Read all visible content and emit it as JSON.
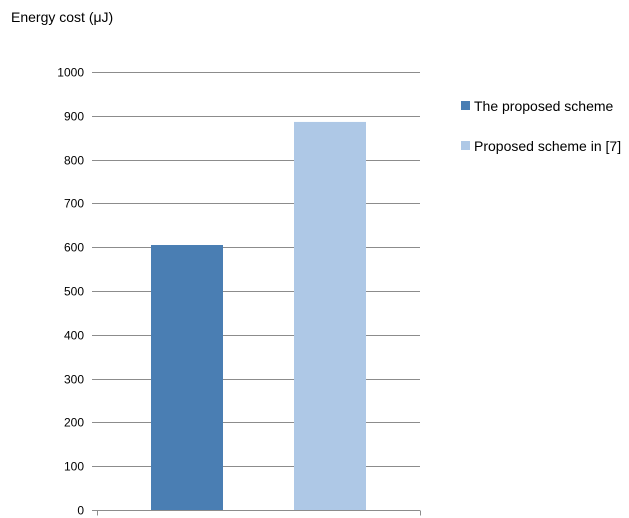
{
  "chart_data": {
    "type": "bar",
    "title": "",
    "ylabel": "Energy cost (μJ)",
    "xlabel": "",
    "categories": [
      ""
    ],
    "series": [
      {
        "name": "The proposed scheme",
        "values": [
          605
        ],
        "color": "#4a7eb3"
      },
      {
        "name": "Proposed scheme in [7]",
        "values": [
          886
        ],
        "color": "#aec8e6"
      }
    ],
    "ylim": [
      0,
      1000
    ],
    "yticks": [
      "0",
      "100",
      "200",
      "300",
      "400",
      "500",
      "600",
      "700",
      "800",
      "900",
      "1000"
    ],
    "grid": true,
    "legend_position": "right",
    "gridline_color": "#8c8c8c"
  }
}
